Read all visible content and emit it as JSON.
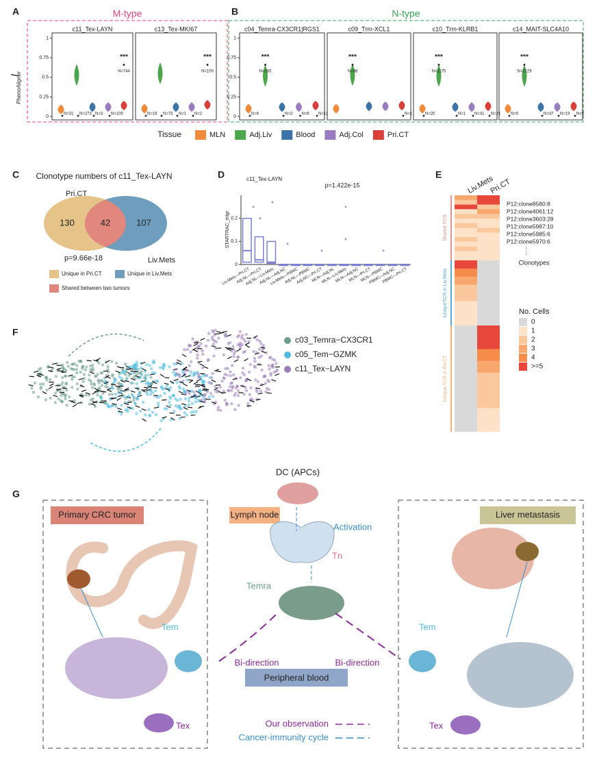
{
  "panel_labels": [
    "A",
    "B",
    "C",
    "D",
    "E",
    "F",
    "G"
  ],
  "phenoaligner": {
    "y_label": "I",
    "y_label_sub": "PhenoAligner",
    "ylim": [
      0,
      1.05
    ],
    "yticks": [
      0,
      0.25,
      0.5,
      0.75,
      1
    ]
  },
  "panel_a": {
    "group_title": "M-type",
    "color": "#e0457b",
    "facets": [
      {
        "title": "c11_Tex-LAYN",
        "values": [
          0.09,
          0.53,
          0.12,
          0.12,
          0.14
        ],
        "n_labels": [
          "N=31",
          "N=273",
          "N=3",
          "N=105",
          "N=744"
        ],
        "stars": "***",
        "star_index": 4
      },
      {
        "title": "c13_Tex-MKI67",
        "values": [
          0.1,
          0.55,
          0.12,
          0.12,
          0.15
        ],
        "n_labels": [
          "N=19",
          "N=73",
          "N=1",
          "N=2",
          "N=100"
        ],
        "stars": "***",
        "star_index": 4
      }
    ]
  },
  "panel_b": {
    "group_title": "N-type",
    "color": "#3aa655",
    "facets": [
      {
        "title": "c04_Temra-CX3CR1|RGS1",
        "values": [
          0.1,
          0.52,
          0.12,
          0.12,
          0.14
        ],
        "n_labels": [
          "N=6",
          "N=165",
          "N=3",
          "N=6",
          "N=11"
        ],
        "stars": "***",
        "star_index": 1
      },
      {
        "title": "c09_Trm-XCL1",
        "values": [
          0.1,
          0.53,
          0.13,
          0.13,
          0.14
        ],
        "n_labels": [
          null,
          "N=98",
          null,
          null,
          "N=1"
        ],
        "stars": "***",
        "star_index": 1
      },
      {
        "title": "c10_Trm-KLRB1",
        "values": [
          0.1,
          0.52,
          0.12,
          0.12,
          0.13
        ],
        "n_labels": [
          "N=25",
          "N=1175",
          "N=1",
          "N=41",
          "N=21"
        ],
        "stars": "***",
        "star_index": 1
      },
      {
        "title": "c14_MAIT-SLC4A10",
        "values": [
          0.1,
          0.52,
          0.12,
          0.12,
          0.13
        ],
        "n_labels": [
          "N=5",
          "N=2129",
          "N=47",
          "N=19",
          "N=6"
        ],
        "stars": "***",
        "star_index": 1
      }
    ]
  },
  "tissue_legend": {
    "title": "Tissue",
    "items": [
      {
        "name": "MLN",
        "color": "#f28a3c"
      },
      {
        "name": "Adj.Liv",
        "color": "#4ca64c"
      },
      {
        "name": "Blood",
        "color": "#3d74a8"
      },
      {
        "name": "Adj.Col",
        "color": "#9a7cc0"
      },
      {
        "name": "Pri.CT",
        "color": "#d9403a"
      }
    ]
  },
  "panel_c": {
    "title": "Clonotype numbers of c11_Tex-LAYN",
    "set_a": "Pri.CT",
    "set_b": "Liv.Mets",
    "only_a": 130,
    "shared": 42,
    "only_b": 107,
    "p_value": "p=9.66e-18",
    "legend": [
      {
        "label": "Unique in Pri.CT",
        "color": "#e6c489"
      },
      {
        "label": "Unique in Liv.Mets",
        "color": "#6f9dbd"
      },
      {
        "label": "Shared between two tumors",
        "color": "#e2877e"
      }
    ]
  },
  "panel_d": {
    "title": "c11_Tex-LAYN",
    "p_value": "p=1.422e-15",
    "y_label": "STARTRAC_migr",
    "color": "#7b7fd0",
    "ylim": [
      0,
      0.3
    ],
    "yticks": [
      0,
      0.1,
      0.2
    ],
    "categories": [
      "Liv.Mets—Pri.CT",
      "Adj.NL—Pri.CT",
      "Adj.NL—Liv.Mets",
      "Adj.NL—Adj.NC",
      "Liv.Mets—PBMC",
      "Adj.NL—PBMC",
      "Adj.NC—Pri.CT",
      "MLN—Adj.NL",
      "MLN—Liv.Mets",
      "MLN—Adj.NC",
      "MLN—Pri.CT",
      "MLN—PBMC",
      "PBMC—Adj.NC",
      "PBMC—Pri.CT"
    ],
    "q1": [
      0.01,
      0.01,
      0.005,
      0,
      0,
      0,
      0,
      0,
      0,
      0,
      0,
      0,
      0,
      0
    ],
    "values": [
      0.06,
      0.02,
      0.01,
      0,
      0,
      0,
      0,
      0,
      0,
      0,
      0,
      0,
      0,
      0
    ],
    "q3": [
      0.2,
      0.12,
      0.1,
      0,
      0,
      0,
      0,
      0,
      0,
      0,
      0,
      0,
      0,
      0
    ]
  },
  "panel_e": {
    "columns": [
      "Liv.Mets",
      "Pri.CT"
    ],
    "clones": [
      "P12:clone8580:8",
      "P12:clone4061:12",
      "P12:clone3603:28",
      "P12:clone5987:10",
      "P12:clone5985:6",
      "P12:clone5970:6"
    ],
    "ellipsis": "......",
    "clones_label": "Clonotypes",
    "sections": [
      {
        "label": "Shared TCR",
        "color": "#e8908a",
        "rows": [
          [
            3,
            5
          ],
          [
            2,
            5
          ],
          [
            5,
            2
          ],
          [
            1,
            3
          ],
          [
            2,
            2
          ],
          [
            1,
            1
          ],
          [
            2,
            1
          ],
          [
            1,
            2
          ],
          [
            1,
            1
          ],
          [
            2,
            1
          ],
          [
            1,
            1
          ],
          [
            2,
            1
          ],
          [
            1,
            1
          ],
          [
            1,
            1
          ]
        ]
      },
      {
        "label": "UniqueTCR in Liv.Mets",
        "color": "#5aa6d6",
        "rows": [
          [
            5,
            0
          ],
          [
            4,
            0
          ],
          [
            3,
            0
          ],
          [
            2,
            0
          ],
          [
            2,
            0
          ],
          [
            1,
            0
          ],
          [
            1,
            0
          ],
          [
            1,
            0
          ]
        ]
      },
      {
        "label": "Unique TCR in Pri.CT",
        "color": "#f0b27a",
        "rows": [
          [
            0,
            5
          ],
          [
            0,
            5
          ],
          [
            0,
            4
          ],
          [
            0,
            3
          ],
          [
            0,
            2
          ],
          [
            0,
            2
          ],
          [
            0,
            2
          ],
          [
            0,
            1
          ],
          [
            0,
            1
          ]
        ]
      }
    ],
    "legend": {
      "title": "No. Cells",
      "ticks": [
        0,
        1,
        2,
        3,
        4,
        {
          "value": 5,
          "label": ">=5"
        }
      ],
      "colors": [
        "#d9d9d9",
        "#fde2c8",
        "#fbc79c",
        "#f8a86e",
        "#f58c4a",
        "#e8483c"
      ]
    }
  },
  "panel_f": {
    "legend": [
      {
        "name": "c03_Temra−CX3CR1",
        "color": "#6b9e8c"
      },
      {
        "name": "c05_Tem−GZMK",
        "color": "#4dbbe0"
      },
      {
        "name": "c11_Tex−LAYN",
        "color": "#9b7cb8"
      }
    ]
  },
  "panel_g": {
    "dc": "DC (APCs)",
    "primary": "Primary CRC tumor",
    "lymph_node": "Lymph node",
    "activation": "Activation",
    "tn": "Tn",
    "liver": "Liver metastasis",
    "temra": "Temra",
    "tem_left": "Tem",
    "tem_right": "Tem",
    "bi_left": "Bi-direction",
    "bi_right": "Bi-direction",
    "blood": "Peripheral blood",
    "tex_left": "Tex",
    "tex_right": "Tex",
    "our_observation": "Our observation",
    "cycle": "Cancer-immunity cycle"
  }
}
